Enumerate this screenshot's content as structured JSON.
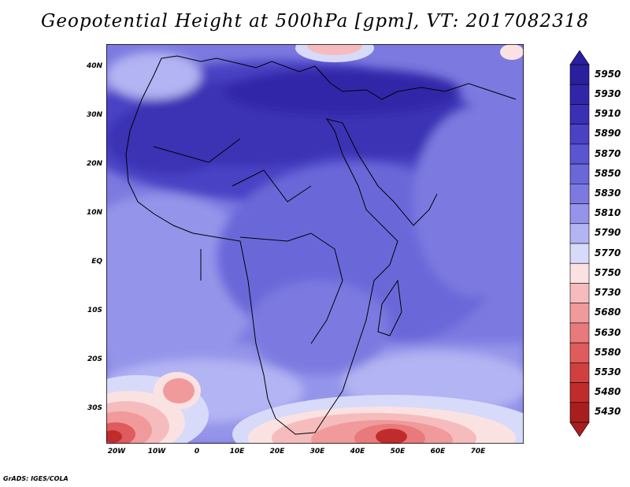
{
  "title": "Geopotential Height at 500hPa [gpm], VT: 2017082318",
  "credit": "GrADS: IGES/COLA",
  "lat_labels": [
    "40N",
    "30N",
    "20N",
    "10N",
    "EQ",
    "10S",
    "20S",
    "30S"
  ],
  "lon_labels": [
    "20W",
    "10W",
    "0",
    "10E",
    "20E",
    "30E",
    "40E",
    "50E",
    "60E",
    "70E"
  ],
  "colorbar": {
    "levels": [
      "5950",
      "5930",
      "5910",
      "5890",
      "5870",
      "5850",
      "5830",
      "5810",
      "5790",
      "5770",
      "5750",
      "5730",
      "5680",
      "5630",
      "5580",
      "5530",
      "5480",
      "5430"
    ],
    "colors": [
      "#2a1f9c",
      "#3226a8",
      "#3a30b4",
      "#4a42c4",
      "#5a55d0",
      "#6a67d9",
      "#7c7ae0",
      "#9494ea",
      "#b3b4f3",
      "#d8daf9",
      "#fbe2e2",
      "#f6bcbd",
      "#f09a9b",
      "#e87a7b",
      "#de5c5d",
      "#d04040",
      "#c02c2c",
      "#a81e1e"
    ]
  }
}
